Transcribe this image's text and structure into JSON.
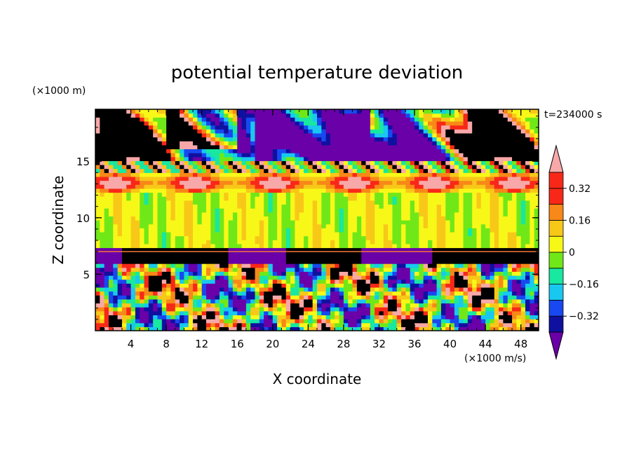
{
  "chart_data": {
    "type": "heatmap",
    "title": "potential temperature deviation",
    "xlabel": "X coordinate",
    "ylabel": "Z coordinate",
    "x_unit": "(×1000 m/s)",
    "y_unit": "(×1000 m)",
    "time_label": "t=234000 s",
    "xlim": [
      0,
      50
    ],
    "ylim": [
      0,
      19.6
    ],
    "x_ticks": [
      4,
      8,
      12,
      16,
      20,
      24,
      28,
      32,
      36,
      40,
      44,
      48
    ],
    "y_ticks": [
      5,
      10,
      15
    ],
    "x_minor_step": 1,
    "y_minor_step": 1,
    "colorbar": {
      "levels": [
        -0.4,
        -0.32,
        -0.24,
        -0.16,
        -0.08,
        0,
        0.08,
        0.16,
        0.24,
        0.32,
        0.4
      ],
      "colors": [
        "#6a00a8",
        "#1010a0",
        "#1848f0",
        "#18c8f0",
        "#18e8a0",
        "#70e818",
        "#f8f818",
        "#f8c818",
        "#f88818",
        "#f82818",
        "#f8a8a8"
      ],
      "labels": [
        {
          "value": -0.32,
          "text": "−0.32"
        },
        {
          "value": -0.16,
          "text": "−0.16"
        },
        {
          "value": 0,
          "text": "0"
        },
        {
          "value": 0.16,
          "text": "0.16"
        },
        {
          "value": 0.32,
          "text": "0.32"
        }
      ],
      "extend": "both"
    },
    "field_regions": [
      {
        "z_range": [
          14,
          19.6
        ],
        "description_level": "upper band: pink (>0.4) blobs alternating with purple (<-0.4)"
      },
      {
        "z_range": [
          7,
          14
        ],
        "description_level": "mid band: near zero, green values"
      },
      {
        "z_range": [
          0,
          7
        ],
        "description_level": "lower band: turbulent mixed values"
      }
    ]
  }
}
